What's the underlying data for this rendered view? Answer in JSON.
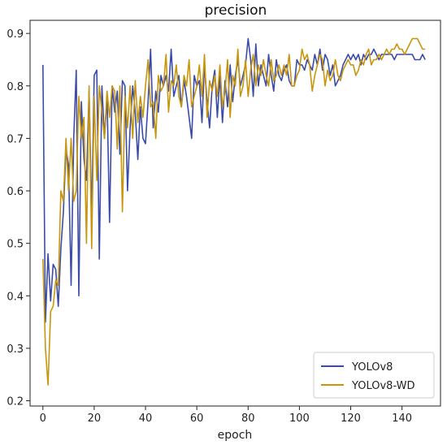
{
  "chart_data": {
    "type": "line",
    "title": "precision",
    "xlabel": "epoch",
    "ylabel": "",
    "xlim": [
      -5,
      155
    ],
    "ylim": [
      0.19,
      0.925
    ],
    "xticks": [
      0,
      20,
      40,
      60,
      80,
      100,
      120,
      140
    ],
    "yticks": [
      0.2,
      0.3,
      0.4,
      0.5,
      0.6,
      0.7,
      0.8,
      0.9
    ],
    "legend_position": "lower-right",
    "grid": false,
    "series": [
      {
        "name": "YOLOv8",
        "color": "#3b4ba8",
        "x": [
          0,
          1,
          2,
          3,
          4,
          5,
          6,
          7,
          8,
          9,
          10,
          11,
          12,
          13,
          14,
          15,
          16,
          17,
          18,
          19,
          20,
          21,
          22,
          23,
          24,
          25,
          26,
          27,
          28,
          29,
          30,
          31,
          32,
          33,
          34,
          35,
          36,
          37,
          38,
          39,
          40,
          41,
          42,
          43,
          44,
          45,
          46,
          47,
          48,
          49,
          50,
          51,
          52,
          53,
          54,
          55,
          56,
          57,
          58,
          59,
          60,
          61,
          62,
          63,
          64,
          65,
          66,
          67,
          68,
          69,
          70,
          71,
          72,
          73,
          74,
          75,
          76,
          77,
          78,
          79,
          80,
          81,
          82,
          83,
          84,
          85,
          86,
          87,
          88,
          89,
          90,
          91,
          92,
          93,
          94,
          95,
          96,
          97,
          98,
          99,
          100,
          101,
          102,
          103,
          104,
          105,
          106,
          107,
          108,
          109,
          110,
          111,
          112,
          113,
          114,
          115,
          116,
          117,
          118,
          119,
          120,
          121,
          122,
          123,
          124,
          125,
          126,
          127,
          128,
          129,
          130,
          131,
          132,
          133,
          134,
          135,
          136,
          137,
          138,
          139,
          140,
          141,
          142,
          143,
          144,
          145,
          146,
          147,
          148,
          149
        ],
        "y": [
          0.84,
          0.35,
          0.48,
          0.39,
          0.46,
          0.45,
          0.38,
          0.49,
          0.56,
          0.68,
          0.65,
          0.42,
          0.7,
          0.83,
          0.4,
          0.77,
          0.66,
          0.62,
          0.79,
          0.55,
          0.82,
          0.83,
          0.47,
          0.8,
          0.7,
          0.78,
          0.54,
          0.8,
          0.75,
          0.79,
          0.67,
          0.81,
          0.8,
          0.6,
          0.72,
          0.8,
          0.75,
          0.66,
          0.76,
          0.7,
          0.69,
          0.77,
          0.87,
          0.72,
          0.79,
          0.75,
          0.82,
          0.8,
          0.82,
          0.79,
          0.87,
          0.78,
          0.8,
          0.82,
          0.76,
          0.81,
          0.78,
          0.74,
          0.7,
          0.82,
          0.8,
          0.81,
          0.73,
          0.84,
          0.77,
          0.72,
          0.8,
          0.83,
          0.74,
          0.82,
          0.73,
          0.81,
          0.76,
          0.84,
          0.77,
          0.82,
          0.85,
          0.8,
          0.82,
          0.84,
          0.89,
          0.85,
          0.78,
          0.88,
          0.8,
          0.84,
          0.82,
          0.8,
          0.86,
          0.82,
          0.79,
          0.85,
          0.82,
          0.81,
          0.83,
          0.84,
          0.81,
          0.8,
          0.8,
          0.85,
          0.84,
          0.84,
          0.83,
          0.85,
          0.84,
          0.83,
          0.86,
          0.84,
          0.87,
          0.83,
          0.86,
          0.85,
          0.82,
          0.84,
          0.8,
          0.81,
          0.82,
          0.84,
          0.85,
          0.86,
          0.85,
          0.86,
          0.85,
          0.86,
          0.84,
          0.86,
          0.85,
          0.86,
          0.86,
          0.87,
          0.86,
          0.85,
          0.86,
          0.86,
          0.86,
          0.86,
          0.86,
          0.85,
          0.86,
          0.86,
          0.86,
          0.86,
          0.86,
          0.86,
          0.86,
          0.85,
          0.85,
          0.85,
          0.86,
          0.85
        ]
      },
      {
        "name": "YOLOv8-WD",
        "color": "#c8960c",
        "x": [
          0,
          1,
          2,
          3,
          4,
          5,
          6,
          7,
          8,
          9,
          10,
          11,
          12,
          13,
          14,
          15,
          16,
          17,
          18,
          19,
          20,
          21,
          22,
          23,
          24,
          25,
          26,
          27,
          28,
          29,
          30,
          31,
          32,
          33,
          34,
          35,
          36,
          37,
          38,
          39,
          40,
          41,
          42,
          43,
          44,
          45,
          46,
          47,
          48,
          49,
          50,
          51,
          52,
          53,
          54,
          55,
          56,
          57,
          58,
          59,
          60,
          61,
          62,
          63,
          64,
          65,
          66,
          67,
          68,
          69,
          70,
          71,
          72,
          73,
          74,
          75,
          76,
          77,
          78,
          79,
          80,
          81,
          82,
          83,
          84,
          85,
          86,
          87,
          88,
          89,
          90,
          91,
          92,
          93,
          94,
          95,
          96,
          97,
          98,
          99,
          100,
          101,
          102,
          103,
          104,
          105,
          106,
          107,
          108,
          109,
          110,
          111,
          112,
          113,
          114,
          115,
          116,
          117,
          118,
          119,
          120,
          121,
          122,
          123,
          124,
          125,
          126,
          127,
          128,
          129,
          130,
          131,
          132,
          133,
          134,
          135,
          136,
          137,
          138,
          139,
          140,
          141,
          142,
          143,
          144,
          145,
          146,
          147,
          148,
          149
        ],
        "y": [
          0.47,
          0.3,
          0.23,
          0.37,
          0.38,
          0.43,
          0.42,
          0.6,
          0.58,
          0.7,
          0.6,
          0.7,
          0.58,
          0.6,
          0.78,
          0.7,
          0.74,
          0.5,
          0.8,
          0.49,
          0.78,
          0.62,
          0.8,
          0.75,
          0.7,
          0.79,
          0.74,
          0.8,
          0.79,
          0.68,
          0.8,
          0.56,
          0.78,
          0.72,
          0.8,
          0.7,
          0.81,
          0.73,
          0.78,
          0.74,
          0.8,
          0.85,
          0.76,
          0.77,
          0.7,
          0.82,
          0.79,
          0.8,
          0.86,
          0.75,
          0.81,
          0.8,
          0.84,
          0.78,
          0.76,
          0.82,
          0.8,
          0.85,
          0.76,
          0.78,
          0.8,
          0.84,
          0.78,
          0.86,
          0.74,
          0.81,
          0.79,
          0.82,
          0.78,
          0.84,
          0.76,
          0.79,
          0.85,
          0.74,
          0.82,
          0.8,
          0.87,
          0.78,
          0.8,
          0.85,
          0.78,
          0.83,
          0.86,
          0.8,
          0.84,
          0.82,
          0.85,
          0.82,
          0.8,
          0.85,
          0.81,
          0.82,
          0.84,
          0.82,
          0.84,
          0.82,
          0.86,
          0.8,
          0.8,
          0.82,
          0.83,
          0.87,
          0.85,
          0.86,
          0.84,
          0.79,
          0.82,
          0.84,
          0.86,
          0.85,
          0.8,
          0.83,
          0.81,
          0.82,
          0.85,
          0.82,
          0.81,
          0.83,
          0.84,
          0.85,
          0.84,
          0.84,
          0.82,
          0.83,
          0.85,
          0.84,
          0.86,
          0.87,
          0.84,
          0.85,
          0.85,
          0.86,
          0.85,
          0.86,
          0.87,
          0.86,
          0.87,
          0.87,
          0.88,
          0.87,
          0.87,
          0.86,
          0.87,
          0.88,
          0.89,
          0.89,
          0.89,
          0.88,
          0.87,
          0.87
        ]
      }
    ]
  }
}
